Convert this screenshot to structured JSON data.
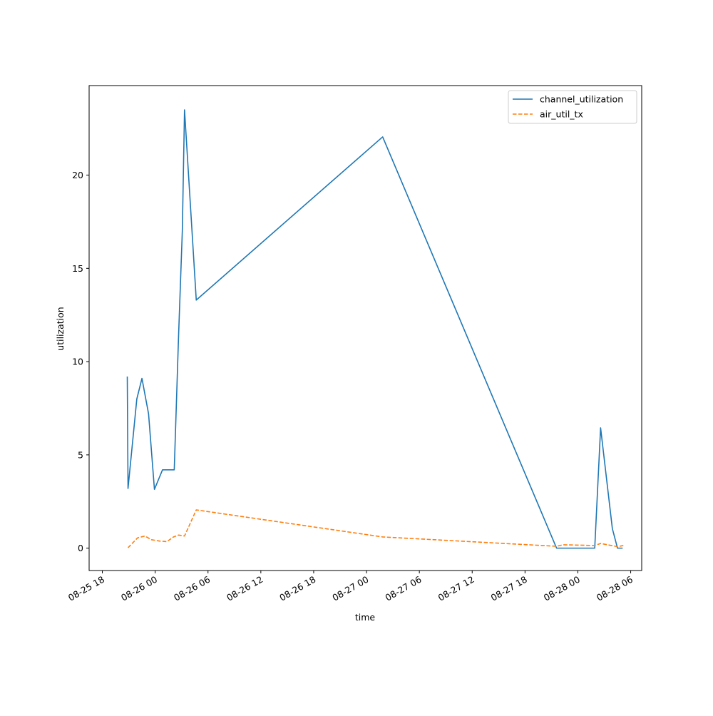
{
  "chart_data": {
    "type": "line",
    "title": "",
    "xlabel": "time",
    "ylabel": "utilization",
    "x_axis_type": "datetime",
    "xlim": [
      "2025-08-25 16:30",
      "2025-08-28 07:15"
    ],
    "ylim": [
      -1.2,
      24.8
    ],
    "xticks": [
      {
        "t": "2025-08-25 18:00",
        "label": "08-25 18"
      },
      {
        "t": "2025-08-26 00:00",
        "label": "08-26 00"
      },
      {
        "t": "2025-08-26 06:00",
        "label": "08-26 06"
      },
      {
        "t": "2025-08-26 12:00",
        "label": "08-26 12"
      },
      {
        "t": "2025-08-26 18:00",
        "label": "08-26 18"
      },
      {
        "t": "2025-08-27 00:00",
        "label": "08-27 00"
      },
      {
        "t": "2025-08-27 06:00",
        "label": "08-27 06"
      },
      {
        "t": "2025-08-27 12:00",
        "label": "08-27 12"
      },
      {
        "t": "2025-08-27 18:00",
        "label": "08-27 18"
      },
      {
        "t": "2025-08-28 00:00",
        "label": "08-28 00"
      },
      {
        "t": "2025-08-28 06:00",
        "label": "08-28 06"
      }
    ],
    "yticks": [
      {
        "v": 0,
        "label": "0"
      },
      {
        "v": 5,
        "label": "5"
      },
      {
        "v": 10,
        "label": "10"
      },
      {
        "v": 15,
        "label": "15"
      },
      {
        "v": 20,
        "label": "20"
      }
    ],
    "grid": false,
    "legend": "top-right",
    "series": [
      {
        "name": "channel_utilization",
        "color": "#1f77b4",
        "style": "solid",
        "points": [
          [
            "2025-08-25 20:50",
            9.2
          ],
          [
            "2025-08-25 20:55",
            3.2
          ],
          [
            "2025-08-25 21:55",
            8.0
          ],
          [
            "2025-08-25 22:30",
            9.1
          ],
          [
            "2025-08-25 23:15",
            7.2
          ],
          [
            "2025-08-25 23:55",
            3.15
          ],
          [
            "2025-08-26 00:50",
            4.2
          ],
          [
            "2025-08-26 02:10",
            4.2
          ],
          [
            "2025-08-26 02:40",
            11.5
          ],
          [
            "2025-08-26 03:05",
            17.0
          ],
          [
            "2025-08-26 03:20",
            23.5
          ],
          [
            "2025-08-26 04:40",
            13.3
          ],
          [
            "2025-08-27 01:50",
            22.05
          ],
          [
            "2025-08-27 21:35",
            0.0
          ],
          [
            "2025-08-27 22:00",
            0.0
          ],
          [
            "2025-08-27 23:55",
            0.0
          ],
          [
            "2025-08-28 01:55",
            0.0
          ],
          [
            "2025-08-28 02:35",
            6.45
          ],
          [
            "2025-08-28 03:55",
            1.05
          ],
          [
            "2025-08-28 04:30",
            0.0
          ],
          [
            "2025-08-28 05:05",
            0.0
          ]
        ]
      },
      {
        "name": "air_util_tx",
        "color": "#ff7f0e",
        "style": "dashed",
        "points": [
          [
            "2025-08-25 20:55",
            0.02
          ],
          [
            "2025-08-25 22:00",
            0.55
          ],
          [
            "2025-08-25 22:50",
            0.65
          ],
          [
            "2025-08-25 23:35",
            0.45
          ],
          [
            "2025-08-26 00:30",
            0.38
          ],
          [
            "2025-08-26 01:20",
            0.35
          ],
          [
            "2025-08-26 02:05",
            0.6
          ],
          [
            "2025-08-26 02:40",
            0.7
          ],
          [
            "2025-08-26 03:20",
            0.65
          ],
          [
            "2025-08-26 04:40",
            2.05
          ],
          [
            "2025-08-27 01:50",
            0.6
          ],
          [
            "2025-08-27 21:35",
            0.1
          ],
          [
            "2025-08-27 22:20",
            0.18
          ],
          [
            "2025-08-28 01:55",
            0.14
          ],
          [
            "2025-08-28 02:35",
            0.25
          ],
          [
            "2025-08-28 04:30",
            0.08
          ],
          [
            "2025-08-28 05:10",
            0.14
          ]
        ]
      }
    ]
  }
}
